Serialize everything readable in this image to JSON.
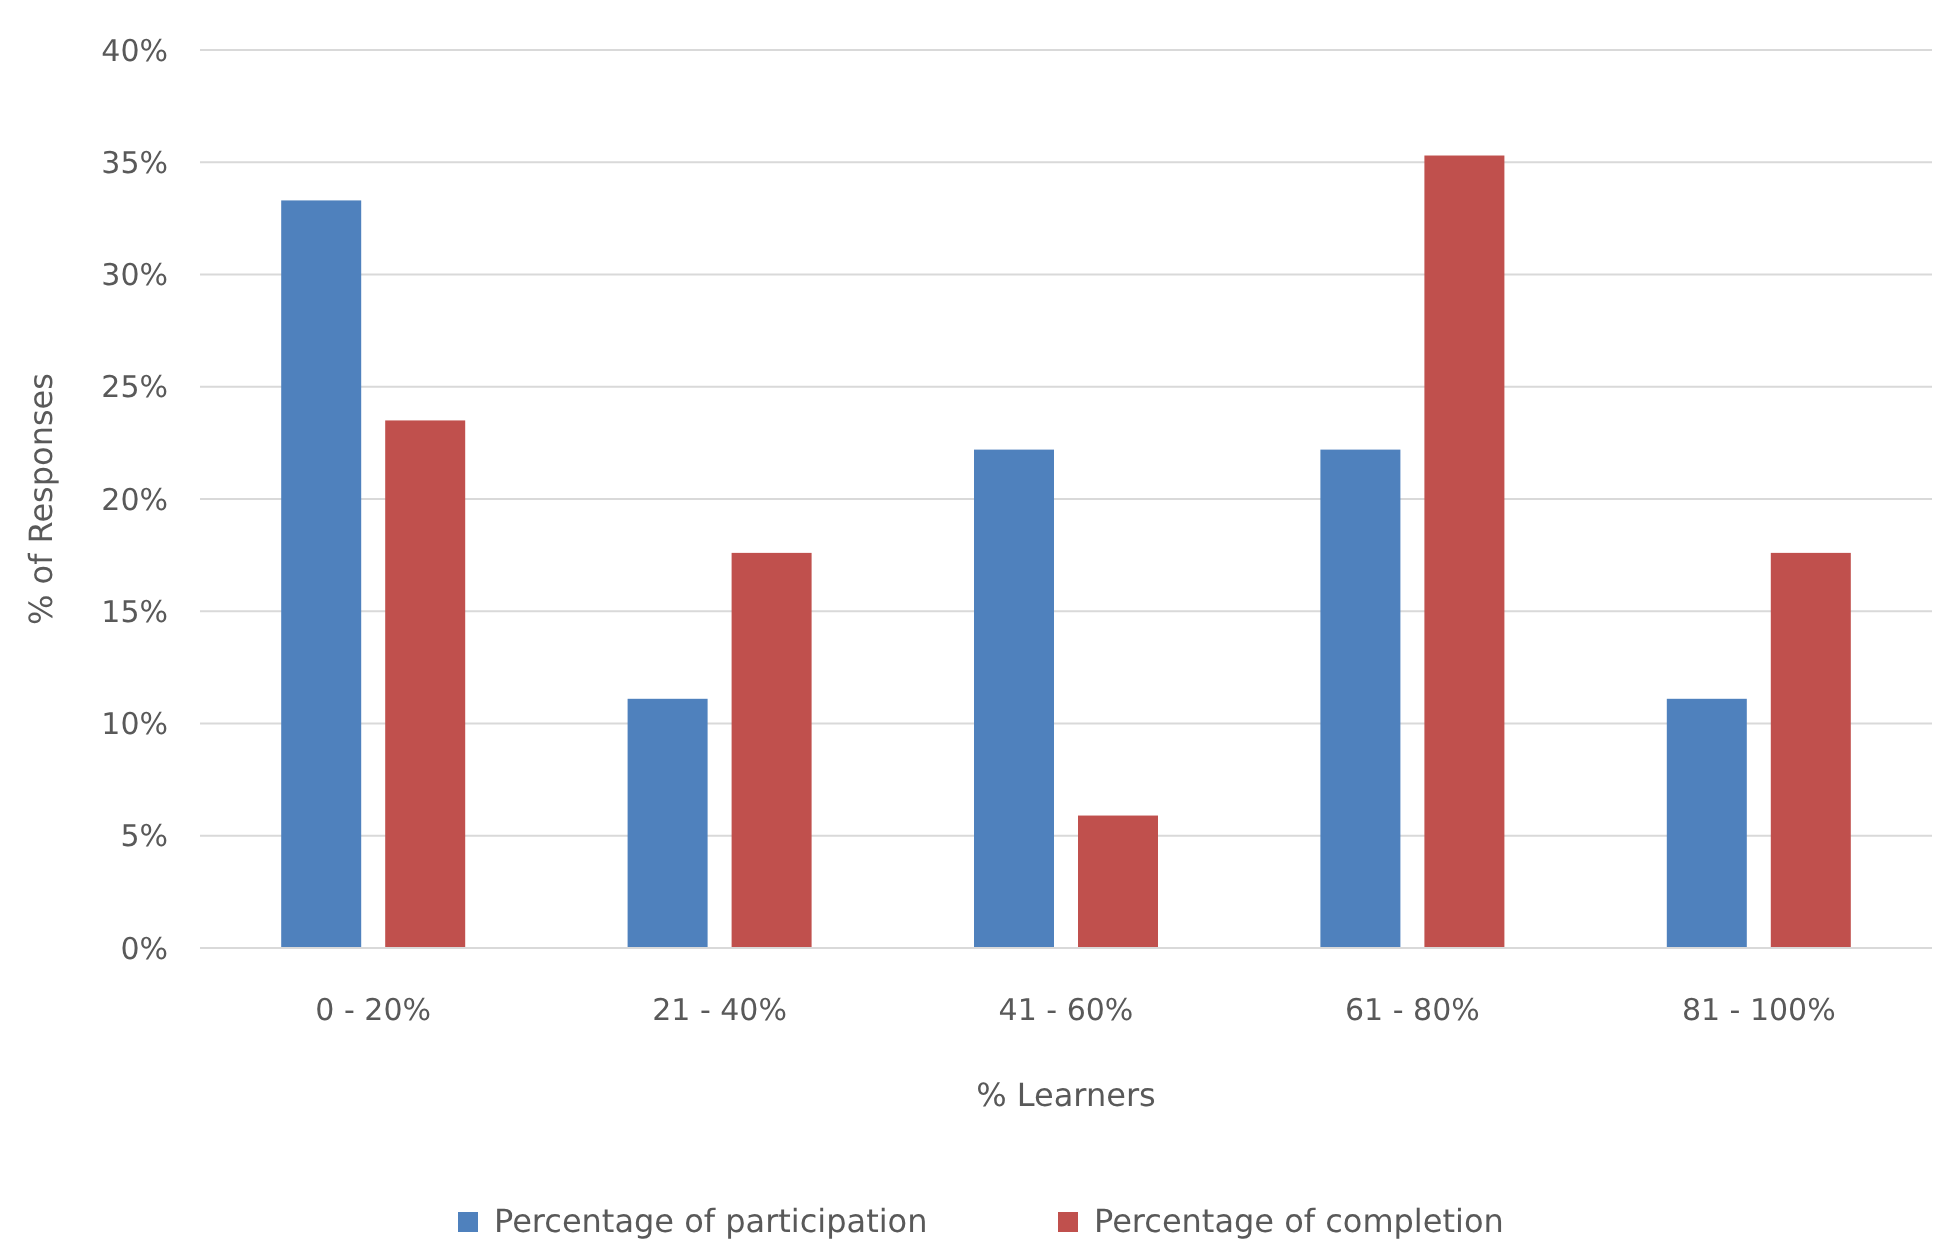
{
  "chart_data": {
    "type": "bar",
    "xlabel": "% Learners",
    "ylabel": "% of Responses",
    "categories": [
      "0 - 20%",
      "21 - 40%",
      "41 - 60%",
      "61 - 80%",
      "81 - 100%"
    ],
    "series": [
      {
        "name": "Percentage of participation",
        "color": "#4f81bd",
        "values": [
          33.3,
          11.1,
          22.2,
          22.2,
          11.1
        ]
      },
      {
        "name": "Percentage of completion",
        "color": "#c0504d",
        "values": [
          23.5,
          17.6,
          5.9,
          35.3,
          17.6
        ]
      }
    ],
    "ylim": [
      0,
      40
    ],
    "yticks": [
      {
        "value": 0,
        "label": "0%"
      },
      {
        "value": 5,
        "label": "5%"
      },
      {
        "value": 10,
        "label": "10%"
      },
      {
        "value": 15,
        "label": "15%"
      },
      {
        "value": 20,
        "label": "20%"
      },
      {
        "value": 25,
        "label": "25%"
      },
      {
        "value": 30,
        "label": "30%"
      },
      {
        "value": 35,
        "label": "35%"
      },
      {
        "value": 40,
        "label": "40%"
      }
    ],
    "grid": "y",
    "legend": "bottom"
  }
}
